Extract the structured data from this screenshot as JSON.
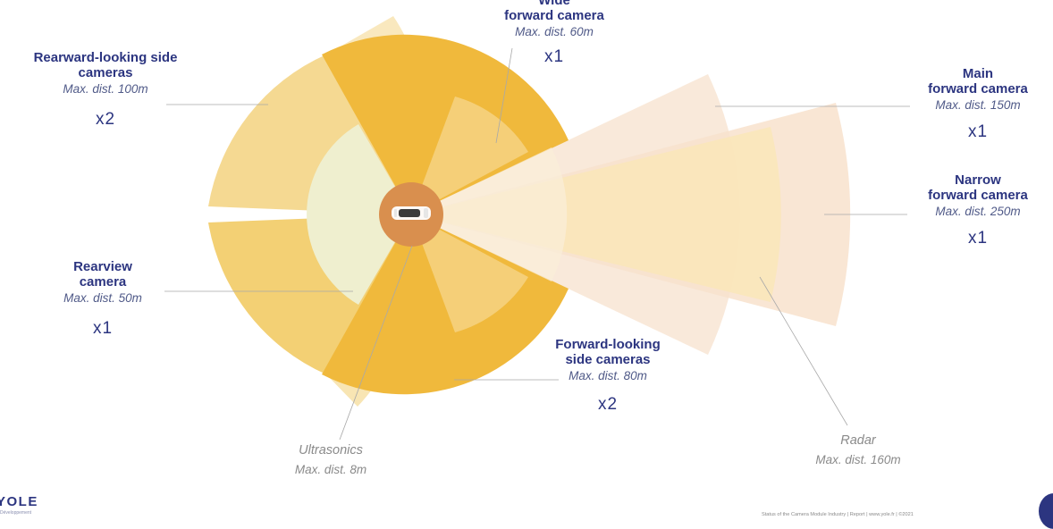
{
  "sensors": {
    "wide_forward": {
      "title_1": "Wide",
      "title_2": "forward camera",
      "distance": "Max. dist. 60m",
      "count": "x1"
    },
    "rearward_side": {
      "title_1": "Rearward-looking side",
      "title_2": "cameras",
      "distance": "Max. dist. 100m",
      "count": "x2"
    },
    "main_forward": {
      "title_1": "Main",
      "title_2": "forward camera",
      "distance": "Max. dist. 150m",
      "count": "x1"
    },
    "narrow_forward": {
      "title_1": "Narrow",
      "title_2": "forward camera",
      "distance": "Max. dist. 250m",
      "count": "x1"
    },
    "rearview": {
      "title_1": "Rearview",
      "title_2": "camera",
      "distance": "Max. dist. 50m",
      "count": "x1"
    },
    "forward_side": {
      "title_1": "Forward-looking",
      "title_2": "side cameras",
      "distance": "Max. dist. 80m",
      "count": "x2"
    },
    "ultrasonics": {
      "title": "Ultrasonics",
      "distance": "Max. dist. 8m"
    },
    "radar": {
      "title": "Radar",
      "distance": "Max. dist. 160m"
    }
  },
  "logo": {
    "brand": "YOLE",
    "sub": "Développement"
  },
  "footer": "Status of the Camera Module Industry | Report | www.yole.fr | ©2021",
  "colors": {
    "title": "#2c3580",
    "strong_orange": "#f0b93c",
    "mid_orange": "#f2cb66",
    "pale_orange": "#f5d992",
    "light_cream": "#efefcf",
    "peach": "#f8e7d6",
    "cream": "#faeed8",
    "center": "#d98f4e"
  }
}
